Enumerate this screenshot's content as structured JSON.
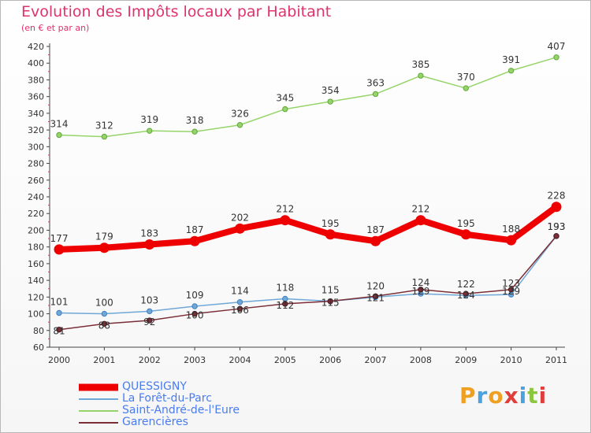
{
  "header": {
    "title": "Evolution des Impôts locaux par Habitant",
    "subtitle": "(en € et par an)"
  },
  "brand": {
    "logo_text": "Proxiti"
  },
  "chart_data": {
    "type": "line",
    "title": "Evolution des Impôts locaux par Habitant",
    "subtitle": "(en € et par an)",
    "xlabel": "",
    "ylabel": "",
    "ylim": [
      60,
      420
    ],
    "yticks": [
      60,
      80,
      100,
      120,
      140,
      160,
      180,
      200,
      220,
      240,
      260,
      280,
      300,
      320,
      340,
      360,
      380,
      400,
      420
    ],
    "grid": false,
    "legend_position": "bottom-left",
    "categories": [
      "2000",
      "2001",
      "2002",
      "2003",
      "2004",
      "2005",
      "2006",
      "2007",
      "2008",
      "2009",
      "2010",
      "2011"
    ],
    "series": [
      {
        "name": "QUESSIGNY",
        "color": "#ee0000",
        "values": [
          177,
          179,
          183,
          187,
          202,
          212,
          195,
          187,
          212,
          195,
          188,
          228
        ]
      },
      {
        "name": "La Forêt-du-Parc",
        "color": "#6fa8d8",
        "values": [
          101,
          100,
          103,
          109,
          114,
          118,
          115,
          120,
          124,
          122,
          123,
          193
        ]
      },
      {
        "name": "Saint-André-de-l'Eure",
        "color": "#96d46a",
        "values": [
          314,
          312,
          319,
          318,
          326,
          345,
          354,
          363,
          385,
          370,
          391,
          407
        ]
      },
      {
        "name": "Garencières",
        "color": "#7a2e36",
        "values": [
          81,
          88,
          92,
          100,
          106,
          112,
          115,
          121,
          129,
          124,
          129,
          193
        ]
      }
    ]
  }
}
